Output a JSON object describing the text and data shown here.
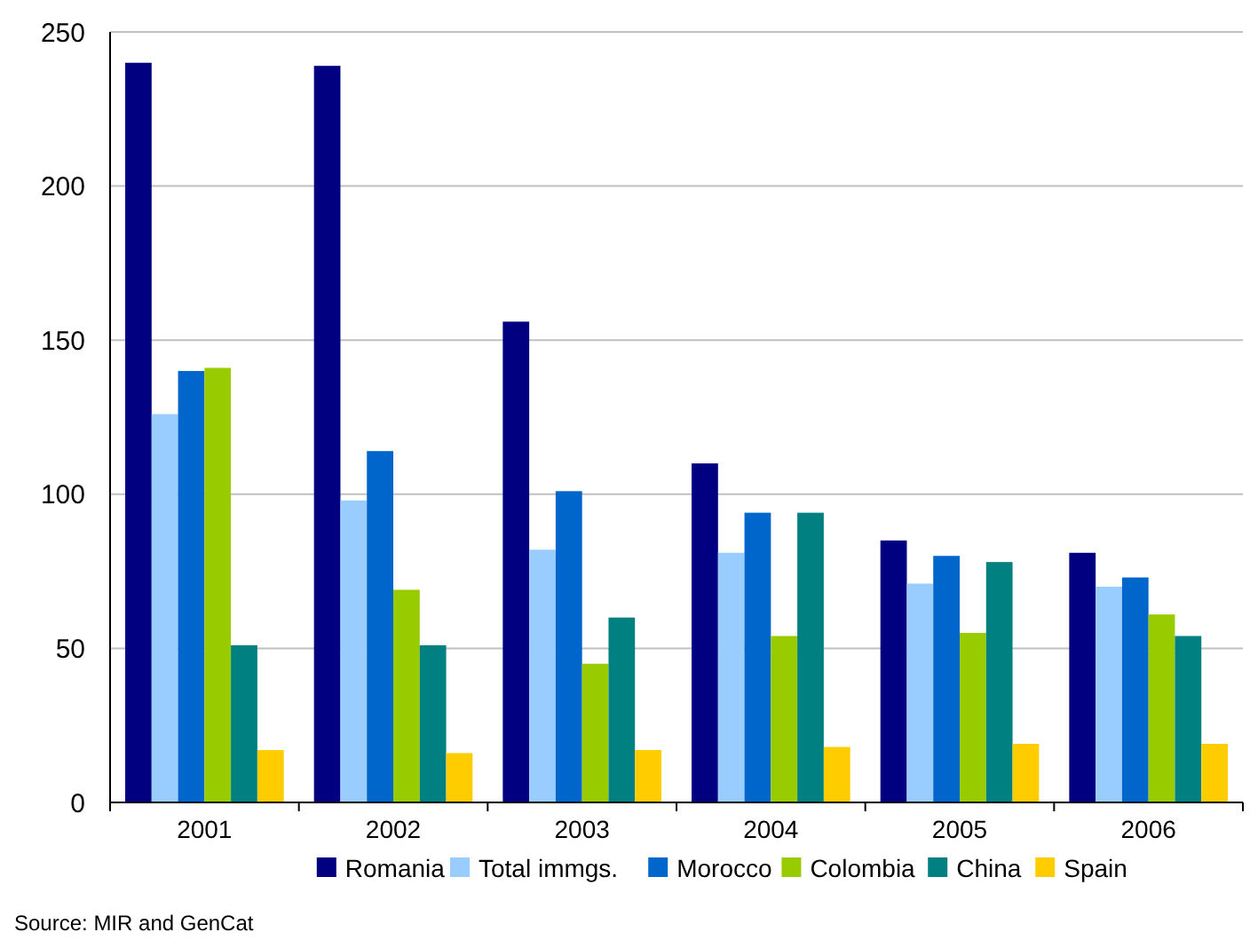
{
  "chart_data": {
    "type": "bar",
    "categories": [
      "2001",
      "2002",
      "2003",
      "2004",
      "2005",
      "2006"
    ],
    "series": [
      {
        "name": "Romania",
        "color": "#000080",
        "values": [
          240,
          239,
          156,
          110,
          85,
          81
        ]
      },
      {
        "name": "Total immgs.",
        "color": "#99ccff",
        "values": [
          126,
          98,
          82,
          81,
          71,
          70
        ]
      },
      {
        "name": "Morocco",
        "color": "#0066cc",
        "values": [
          140,
          114,
          101,
          94,
          80,
          73
        ]
      },
      {
        "name": "Colombia",
        "color": "#99cc00",
        "values": [
          141,
          69,
          45,
          54,
          55,
          61
        ]
      },
      {
        "name": "China",
        "color": "#008080",
        "values": [
          51,
          51,
          60,
          94,
          78,
          54
        ]
      },
      {
        "name": "Spain",
        "color": "#ffcc00",
        "values": [
          17,
          16,
          17,
          18,
          19,
          19
        ]
      }
    ],
    "ylim": [
      0,
      250
    ],
    "yticks": [
      0,
      50,
      100,
      150,
      200,
      250
    ],
    "grid": "y",
    "legend": "bottom",
    "annotations": [
      "Source: MIR and GenCat"
    ]
  }
}
